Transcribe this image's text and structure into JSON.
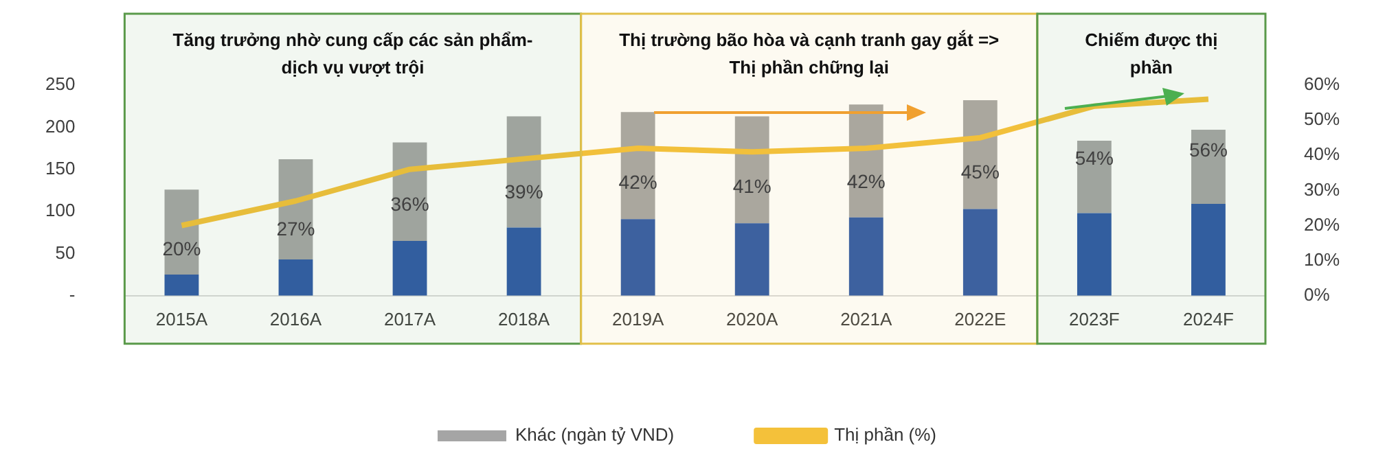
{
  "chart_data": {
    "type": "bar",
    "stacked": true,
    "categories": [
      "2015A",
      "2016A",
      "2017A",
      "2018A",
      "2019A",
      "2020A",
      "2021A",
      "2022E",
      "2023F",
      "2024F"
    ],
    "series": [
      {
        "color": "#2f5aa6",
        "values": [
          25,
          43,
          65,
          81,
          91,
          86,
          93,
          103,
          98,
          109
        ]
      },
      {
        "name": "Khác (ngàn tỷ VND)",
        "color": "#a5a5a5",
        "values": [
          101,
          119,
          117,
          132,
          127,
          127,
          134,
          129,
          86,
          88
        ]
      },
      {
        "name": "Thị phần (%)",
        "type": "line",
        "axis": "y2",
        "color": "#f4c13a",
        "values": [
          20,
          27,
          36,
          39,
          42,
          41,
          42,
          45,
          54,
          56
        ],
        "value_labels": [
          "20%",
          "27%",
          "36%",
          "39%",
          "42%",
          "41%",
          "42%",
          "45%",
          "54%",
          "56%"
        ]
      }
    ],
    "ylim": [
      0,
      250
    ],
    "yticks": [
      {
        "value": 0,
        "label": "-"
      },
      50,
      100,
      150,
      200,
      250
    ],
    "y2lim": [
      0,
      60
    ],
    "y2ticks": [
      {
        "value": 0,
        "label": "0%"
      },
      {
        "value": 10,
        "label": "10%"
      },
      {
        "value": 20,
        "label": "20%"
      },
      {
        "value": 30,
        "label": "30%"
      },
      {
        "value": 40,
        "label": "40%"
      },
      {
        "value": 50,
        "label": "50%"
      },
      {
        "value": 60,
        "label": "60%"
      }
    ],
    "bands": [
      {
        "axis": "x",
        "from": "2015A",
        "to": "2018A",
        "label": "Tăng trưởng nhờ cung cấp các sản phẩm- dịch vụ vượt trội",
        "color": "#5a9a4a"
      },
      {
        "axis": "x",
        "from": "2019A",
        "to": "2022E",
        "label": "Thị trường bão hòa và cạnh tranh gay gắt => Thị phần chững lại",
        "color": "#e2c04a"
      },
      {
        "axis": "x",
        "from": "2023F",
        "to": "2024F",
        "label": "Chiếm được thị phần",
        "color": "#5a9a4a"
      }
    ],
    "grid": false,
    "legend": "bottom",
    "marker": "none",
    "line_style": "solid"
  }
}
